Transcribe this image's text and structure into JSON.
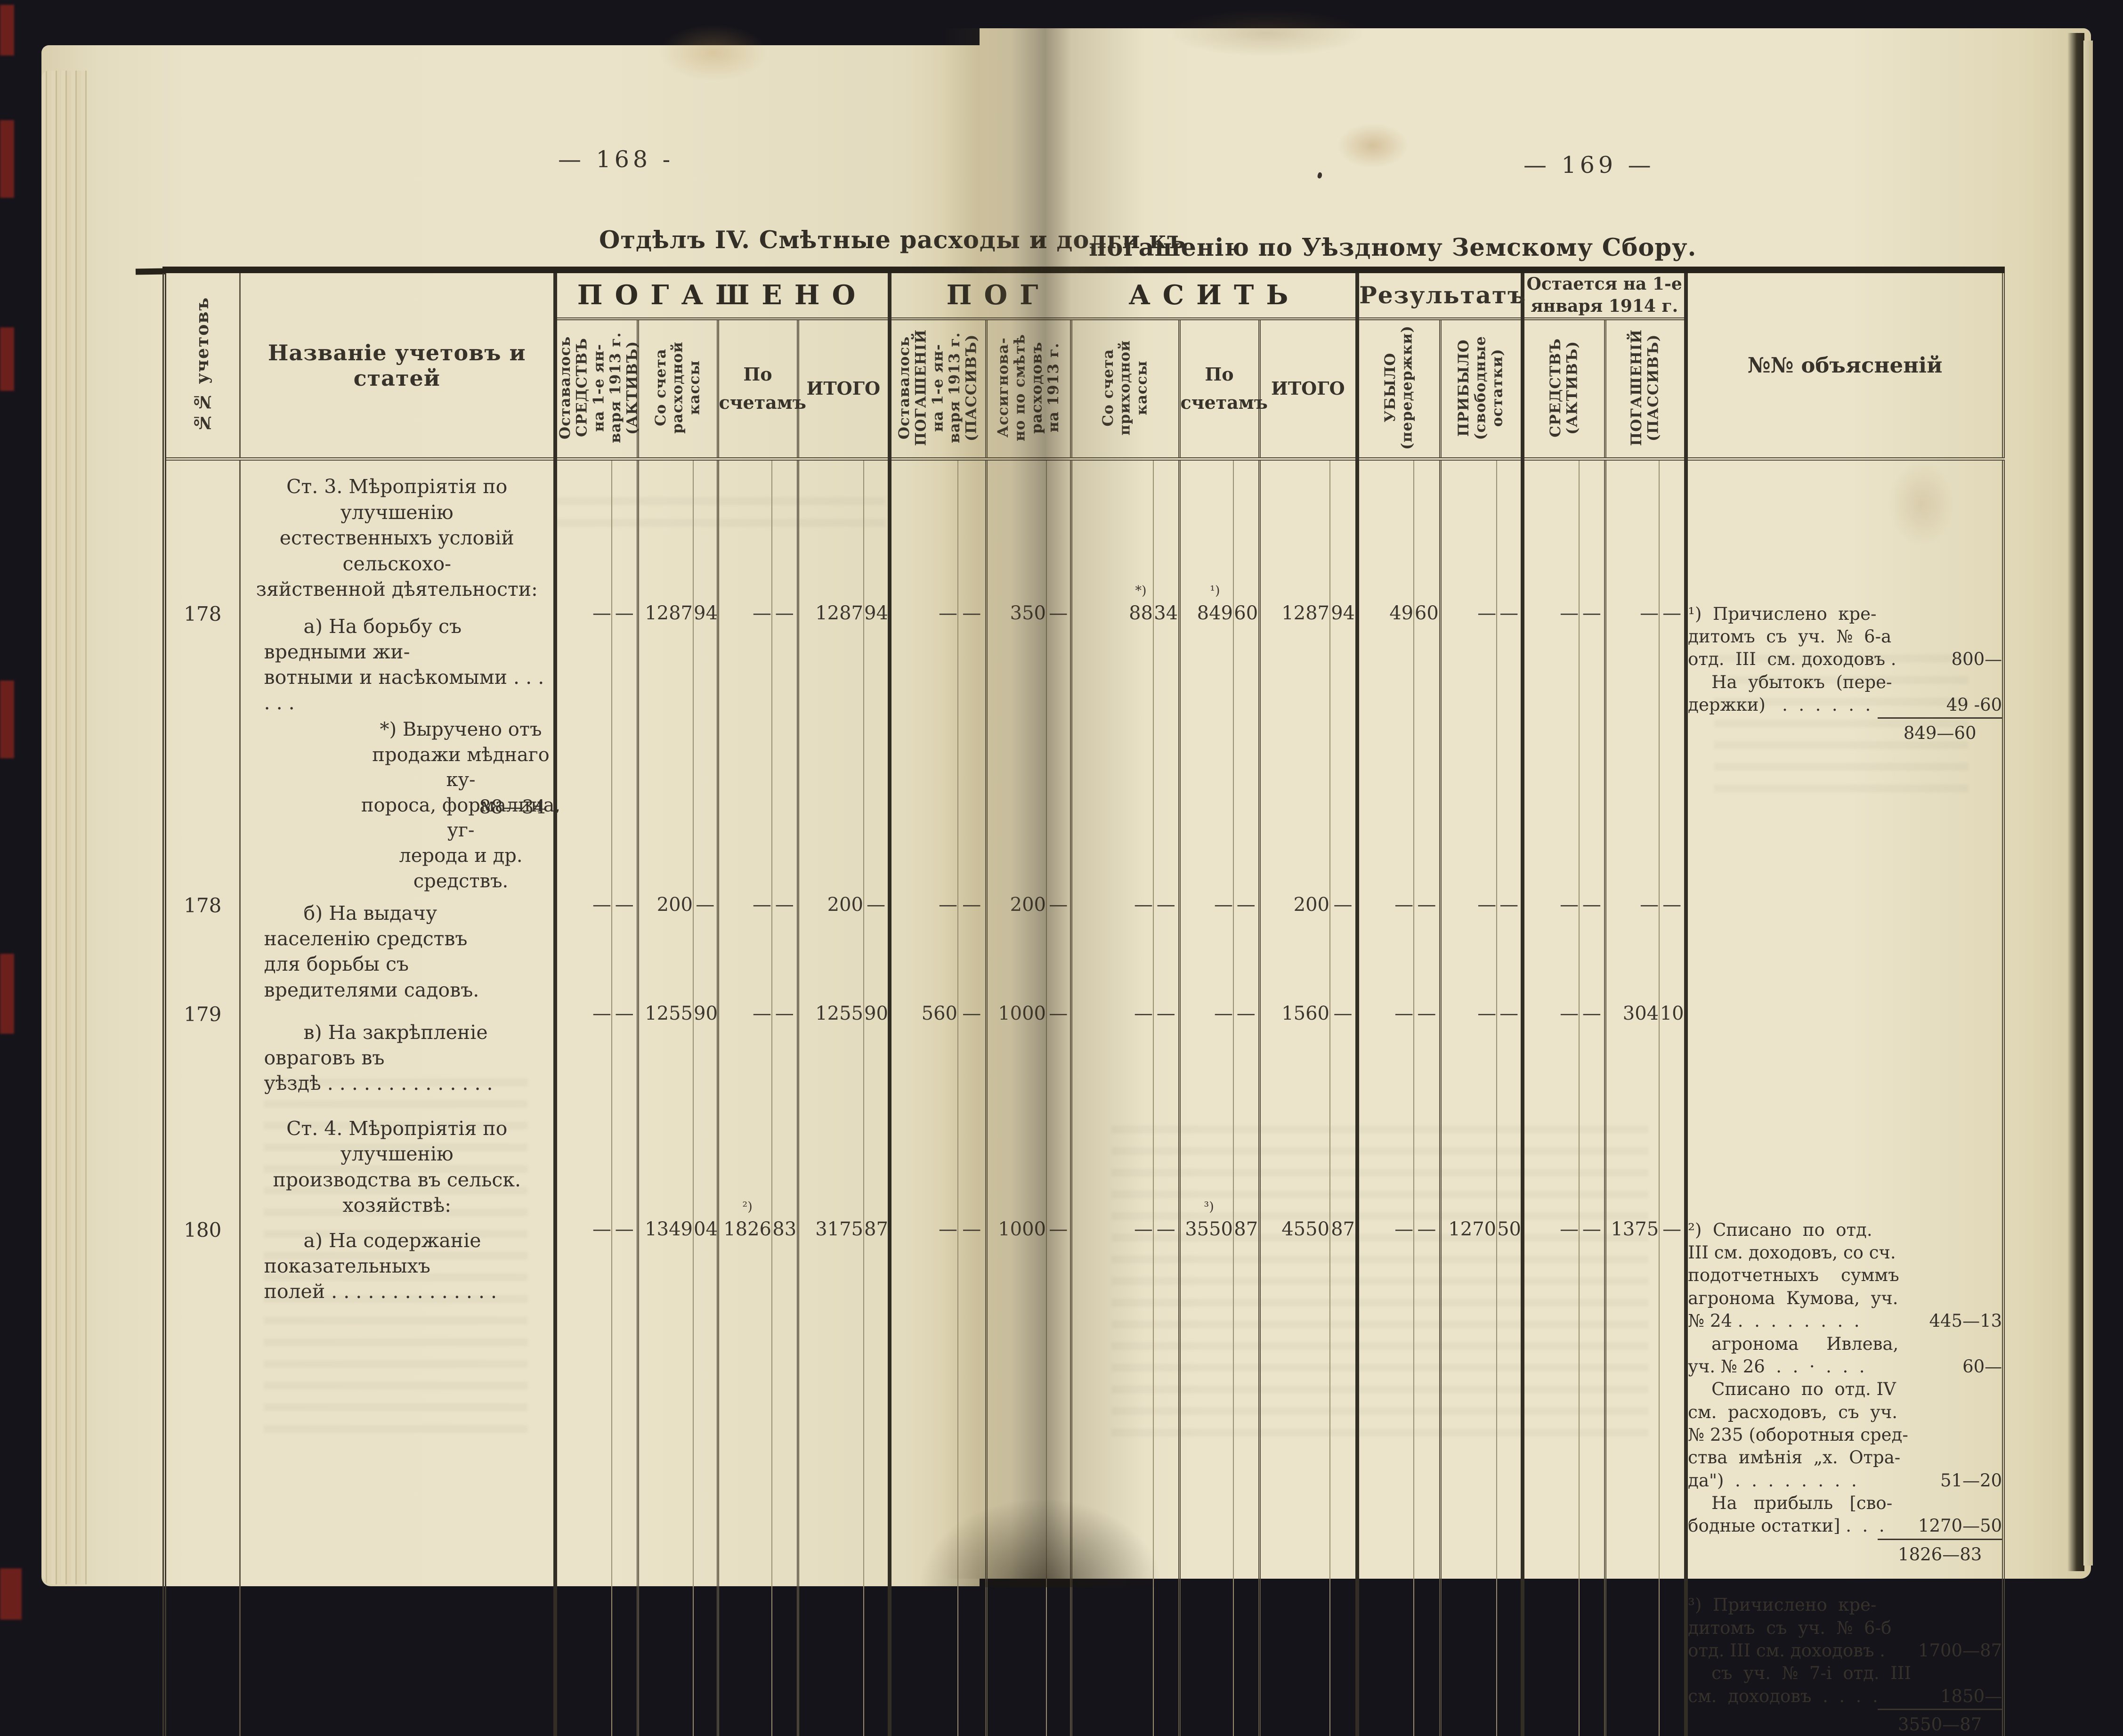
{
  "colors": {
    "paper": "#e9e2c8",
    "ink": "#36312a",
    "table_line": "#4e4738",
    "background": "#15141a",
    "red_mark": "#7c231d"
  },
  "pages": {
    "left_number": "— 168 -",
    "right_number": "— 169 —",
    "title_left": "Отдѣлъ IV.  Смѣтные  расходы  и  долги  къ",
    "title_right": "погашенію  по  Уѣздному  Земскому  Сбору."
  },
  "header": {
    "uchet": "№№ учетовъ",
    "name": "Названіе учетовъ и статей",
    "groups": {
      "pogasheno": "ПОГАШЕНО",
      "pogasit": "ПОГ АСИТЬ",
      "rezultat": "Результатъ",
      "ostaetsya": "Остается на 1-е\nянваря 1914 г.",
      "obyasnenij": "№№ объясненій"
    },
    "cols": [
      {
        "label": "Оставалось\nСРЕДСТВЪ\nна 1-е ян-\nваря 1913 г.\n(АКТИВЪ)",
        "rot": 1
      },
      {
        "label": "Со счета\nрасходной\nкассы",
        "rot": 1
      },
      {
        "label": "По\nсчетамъ",
        "rot": 0
      },
      {
        "label": "ИТОГО",
        "rot": 0
      },
      {
        "label": "Оставалось\nПОГАШЕНІЙ\nна 1-е ян-\nваря 1913 г.\n(ПАССИВЪ)",
        "rot": 1
      },
      {
        "label": "Ассигнова-\nно по смѣтѣ\nрасходовъ\nна 1913 г.",
        "rot": 1
      },
      {
        "label": "Со счета\nприходной\nкассы",
        "rot": 1
      },
      {
        "label": "По\nсчетамъ",
        "rot": 0
      },
      {
        "label": "ИТОГО",
        "rot": 0
      },
      {
        "label": "УБЫЛО\n(передержки)",
        "rot": 1
      },
      {
        "label": "ПРИБЫЛО\n(свободные\nостатки)",
        "rot": 1
      },
      {
        "label": "СРЕДСТВЪ\n(АКТИВЪ)",
        "rot": 1
      },
      {
        "label": "ПОГАШЕНІЙ\n(ПАССИВЪ)",
        "rot": 1
      }
    ]
  },
  "rows": [
    {
      "k": "st3",
      "kind": "section",
      "no": "",
      "name": "Ст. 3.  Мѣропріятія  по улучшенію\nестественныхъ  условій  сельскохо-\nзяйственной дѣятельности:"
    },
    {
      "k": "r178a",
      "kind": "data",
      "no": "178",
      "name": "а)  На  борьбу  съ  вредными  жи-\nвотными и насѣкомыми . . . . . .",
      "vals": [
        [
          "—",
          "—"
        ],
        [
          "1287",
          "94"
        ],
        [
          "—",
          "—"
        ],
        [
          "1287",
          "94"
        ],
        [
          "—",
          "—"
        ],
        [
          "350",
          "—"
        ],
        [
          "88",
          "34",
          "*)"
        ],
        [
          "849",
          "60",
          "¹)"
        ],
        [
          "1287",
          "94"
        ],
        [
          "49",
          "60"
        ],
        [
          "—",
          "—"
        ],
        [
          "—",
          "—"
        ],
        [
          "—",
          "—"
        ]
      ],
      "note": "n1",
      "noterows": 2
    },
    {
      "k": "r178n",
      "kind": "subnote",
      "no": "",
      "lines": "*)  Выручено  отъ\nпродажи  мѣднаго  ку-\nпороса, формалина, уг-\nлерода и др. средствъ.",
      "amount": "88—34"
    },
    {
      "k": "r178b",
      "kind": "data",
      "no": "178",
      "name": "б)  На выдачу населенію средствъ\nдля борьбы съ вредителями садовъ.",
      "vals": [
        [
          "—",
          "—"
        ],
        [
          "200",
          "—"
        ],
        [
          "—",
          "—"
        ],
        [
          "200",
          "—"
        ],
        [
          "—",
          "—"
        ],
        [
          "200",
          "—"
        ],
        [
          "—",
          "—"
        ],
        [
          "—",
          "—"
        ],
        [
          "200",
          "—"
        ],
        [
          "—",
          "—"
        ],
        [
          "—",
          "—"
        ],
        [
          "—",
          "—"
        ],
        [
          "—",
          "—"
        ]
      ]
    },
    {
      "k": "r179",
      "kind": "data",
      "no": "179",
      "name": "в)  На  закрѣпленіе  овраговъ  въ\nуѣздѣ  . . . . . . . . . . . . . .",
      "vals": [
        [
          "—",
          "—"
        ],
        [
          "1255",
          "90"
        ],
        [
          "—",
          "—"
        ],
        [
          "1255",
          "90"
        ],
        [
          "560",
          "—"
        ],
        [
          "1000",
          "—"
        ],
        [
          "—",
          "—"
        ],
        [
          "—",
          "—"
        ],
        [
          "1560",
          "—"
        ],
        [
          "—",
          "—"
        ],
        [
          "—",
          "—"
        ],
        [
          "—",
          "—"
        ],
        [
          "304",
          "10"
        ]
      ]
    },
    {
      "k": "st4",
      "kind": "section",
      "no": "",
      "name": "Ст. 4.  Мѣропріятія  по улучшенію\nпроизводства въ сельск.  хозяйствѣ:"
    },
    {
      "k": "r180",
      "kind": "data",
      "no": "180",
      "name": "а)  На содержаніе показательныхъ\nполей  . . . . . . . . . . . . . .",
      "vals": [
        [
          "—",
          "—"
        ],
        [
          "1349",
          "04"
        ],
        [
          "1826",
          "83",
          "²)"
        ],
        [
          "3175",
          "87"
        ],
        [
          "—",
          "—"
        ],
        [
          "1000",
          "—"
        ],
        [
          "—",
          "—"
        ],
        [
          "3550",
          "87",
          "³)"
        ],
        [
          "4550",
          "87"
        ],
        [
          "—",
          "—"
        ],
        [
          "1270",
          "50"
        ],
        [
          "—",
          "—"
        ],
        [
          "1375",
          "—"
        ]
      ],
      "note": "n23",
      "noterows": 1
    }
  ],
  "notes": {
    "n1": [
      {
        "t": "¹)  Причислено  кре-"
      },
      {
        "t": "дитомъ  съ  уч.  №  6-а"
      },
      {
        "t": "отд.  III  см. доходовъ .",
        "a": "800—"
      },
      {
        "t": "На  убытокъ  (пере-",
        "in": 1
      },
      {
        "t": "держки)   .  .  .  .  .  .",
        "a": "49 -60"
      },
      {
        "a": "849—60",
        "tot": 1
      }
    ],
    "n23": [
      {
        "t": "²)  Списано  по  отд."
      },
      {
        "t": "III см. доходовъ, со сч."
      },
      {
        "t": "подотчетныхъ    суммъ"
      },
      {
        "t": "агронома  Кумова,  уч."
      },
      {
        "t": "№ 24 .  .  .  .  .  .  .  .",
        "a": "445—13"
      },
      {
        "t": "агронома     Ивлева,",
        "in": 1
      },
      {
        "t": "уч. № 26  .  .  ·  .  .  .",
        "a": "60—"
      },
      {
        "t": "Списано  по  отд. IV",
        "in": 1
      },
      {
        "t": "см.  расходовъ,  съ  уч."
      },
      {
        "t": "№ 235 (оборотныя сред-"
      },
      {
        "t": "ства  имѣнія  „х.  Отра-"
      },
      {
        "t": "да\")  .  .  .  .  .  .  .  .",
        "a": "51—20"
      },
      {
        "t": "На   прибыль   [сво-",
        "in": 1
      },
      {
        "t": "бодные остатки] .  .  .",
        "a": "1270—50"
      },
      {
        "a": "1826—83",
        "tot": 1
      },
      {
        "t": "³)  Причислено  кре-",
        "gap": 1
      },
      {
        "t": "дитомъ  съ  уч.  №  6-б"
      },
      {
        "t": "отд. III см. доходовъ .",
        "a": "1700—87"
      },
      {
        "t": "съ  уч.  №  7-і  отд.  III",
        "in": 1
      },
      {
        "t": "см.  доходовъ  .  .  .  .",
        "a": "1850—"
      },
      {
        "a": "3550—87",
        "tot": 1
      }
    ]
  }
}
